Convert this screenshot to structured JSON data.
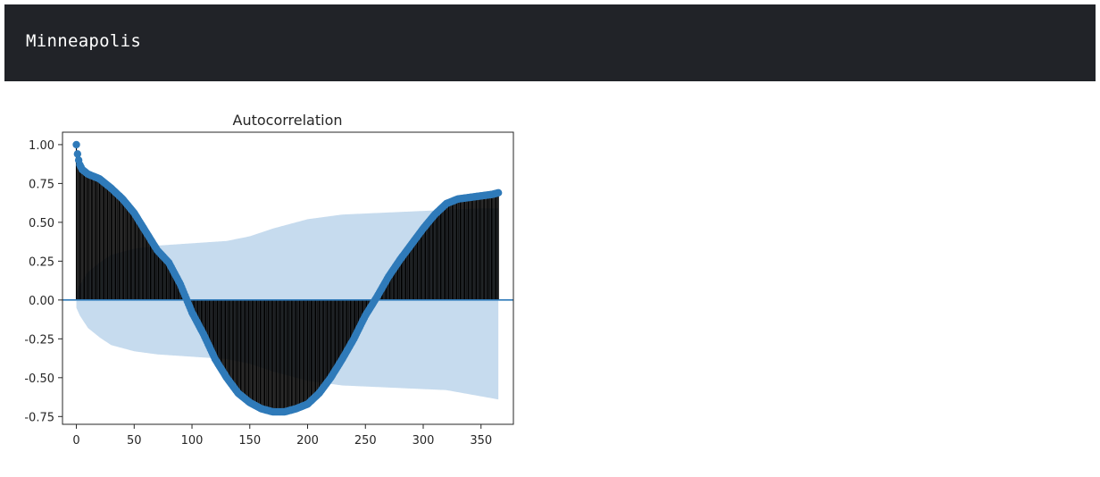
{
  "header": {
    "title": "Minneapolis"
  },
  "colors": {
    "header_bg": "#212328",
    "header_text": "#ffffff",
    "marker": "#2f7ab9",
    "confidence_band": "#c6dbee",
    "stem": "#000000"
  },
  "chart_data": {
    "type": "scatter",
    "title": "Autocorrelation",
    "xlabel": "",
    "ylabel": "",
    "xlim": [
      -12,
      378
    ],
    "ylim": [
      -0.8,
      1.08
    ],
    "xticks": [
      0,
      50,
      100,
      150,
      200,
      250,
      300,
      350
    ],
    "yticks": [
      -0.75,
      -0.5,
      -0.25,
      0.0,
      0.25,
      0.5,
      0.75,
      1.0
    ],
    "grid": false,
    "legend": "none",
    "acf_keypoints": {
      "lag": [
        0,
        1,
        2,
        3,
        5,
        10,
        20,
        30,
        40,
        50,
        60,
        70,
        80,
        90,
        100,
        110,
        120,
        130,
        140,
        150,
        160,
        170,
        180,
        190,
        200,
        210,
        220,
        230,
        240,
        250,
        260,
        270,
        280,
        290,
        300,
        310,
        320,
        330,
        340,
        350,
        360,
        365
      ],
      "value": [
        1.0,
        0.94,
        0.9,
        0.87,
        0.84,
        0.81,
        0.78,
        0.72,
        0.65,
        0.56,
        0.44,
        0.32,
        0.24,
        0.1,
        -0.08,
        -0.22,
        -0.38,
        -0.5,
        -0.6,
        -0.66,
        -0.7,
        -0.72,
        -0.72,
        -0.7,
        -0.67,
        -0.6,
        -0.5,
        -0.38,
        -0.25,
        -0.1,
        0.02,
        0.15,
        0.26,
        0.36,
        0.46,
        0.55,
        0.62,
        0.65,
        0.66,
        0.67,
        0.68,
        0.69
      ]
    },
    "confidence_band_keypoints": {
      "lag": [
        0,
        3,
        10,
        20,
        30,
        50,
        70,
        90,
        110,
        130,
        150,
        170,
        200,
        230,
        260,
        290,
        320,
        350,
        365
      ],
      "upper": [
        0.05,
        0.1,
        0.18,
        0.24,
        0.29,
        0.33,
        0.35,
        0.36,
        0.37,
        0.38,
        0.41,
        0.46,
        0.52,
        0.55,
        0.56,
        0.57,
        0.58,
        0.59,
        0.59
      ],
      "lower": [
        -0.05,
        -0.1,
        -0.18,
        -0.24,
        -0.29,
        -0.33,
        -0.35,
        -0.36,
        -0.37,
        -0.38,
        -0.41,
        -0.46,
        -0.52,
        -0.55,
        -0.56,
        -0.57,
        -0.58,
        -0.62,
        -0.64
      ]
    }
  }
}
